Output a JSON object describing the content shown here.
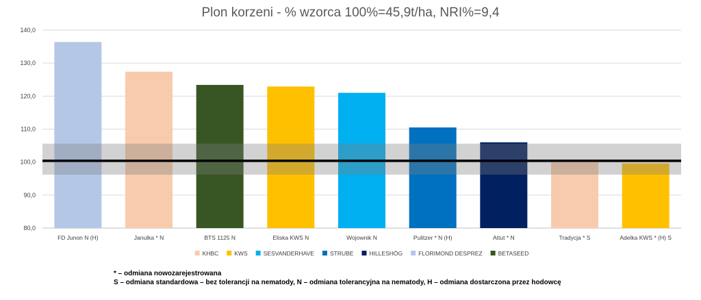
{
  "chart_data": {
    "type": "bar",
    "title": "Plon korzeni - % wzorca 100%=45,9t/ha, NRI%=9,4",
    "xlabel": "",
    "ylabel": "",
    "ylim": [
      80,
      140
    ],
    "yticks": [
      "80,0",
      "90,0",
      "100,0",
      "110,0",
      "120,0",
      "130,0",
      "140,0"
    ],
    "ytick_values": [
      80,
      90,
      100,
      110,
      120,
      130,
      140
    ],
    "grid": true,
    "categories": [
      "FD Junon N (H)",
      "Janulka * N",
      "BTS 1125 N",
      "Eliska KWS N",
      "Wojownik N",
      "Pulitzer * N (H)",
      "Attut * N",
      "Tradycja * S",
      "Adelka KWS * (H) S"
    ],
    "values": [
      136.4,
      127.4,
      123.4,
      122.9,
      121.0,
      110.5,
      106.0,
      100.5,
      99.6
    ],
    "bar_breeders": [
      "FLORIMOND DESPREZ",
      "KHBC",
      "BETASEED",
      "KWS",
      "SESVANDERHAVE",
      "STRUBE",
      "HILLESHÖG",
      "KHBC",
      "KWS"
    ],
    "reference_line": 100.4,
    "nri_band": [
      96.2,
      105.6
    ],
    "legend": [
      {
        "name": "KHBC",
        "color": "#F8CBAD"
      },
      {
        "name": "KWS",
        "color": "#FFC000"
      },
      {
        "name": "SESVANDERHAVE",
        "color": "#00B0F0"
      },
      {
        "name": "STRUBE",
        "color": "#0070C0"
      },
      {
        "name": "HILLESHÖG",
        "color": "#002060"
      },
      {
        "name": "FLORIMOND DESPREZ",
        "color": "#B4C7E7"
      },
      {
        "name": "BETASEED",
        "color": "#375623"
      }
    ],
    "legend_position": "bottom"
  },
  "notes": {
    "line1": "* – odmiana nowozarejestrowana",
    "line2": "S – odmiana standardowa – bez tolerancji na nematody, N – odmiana tolerancyjna na nematody, H – odmiana dostarczona przez hodowcę"
  }
}
